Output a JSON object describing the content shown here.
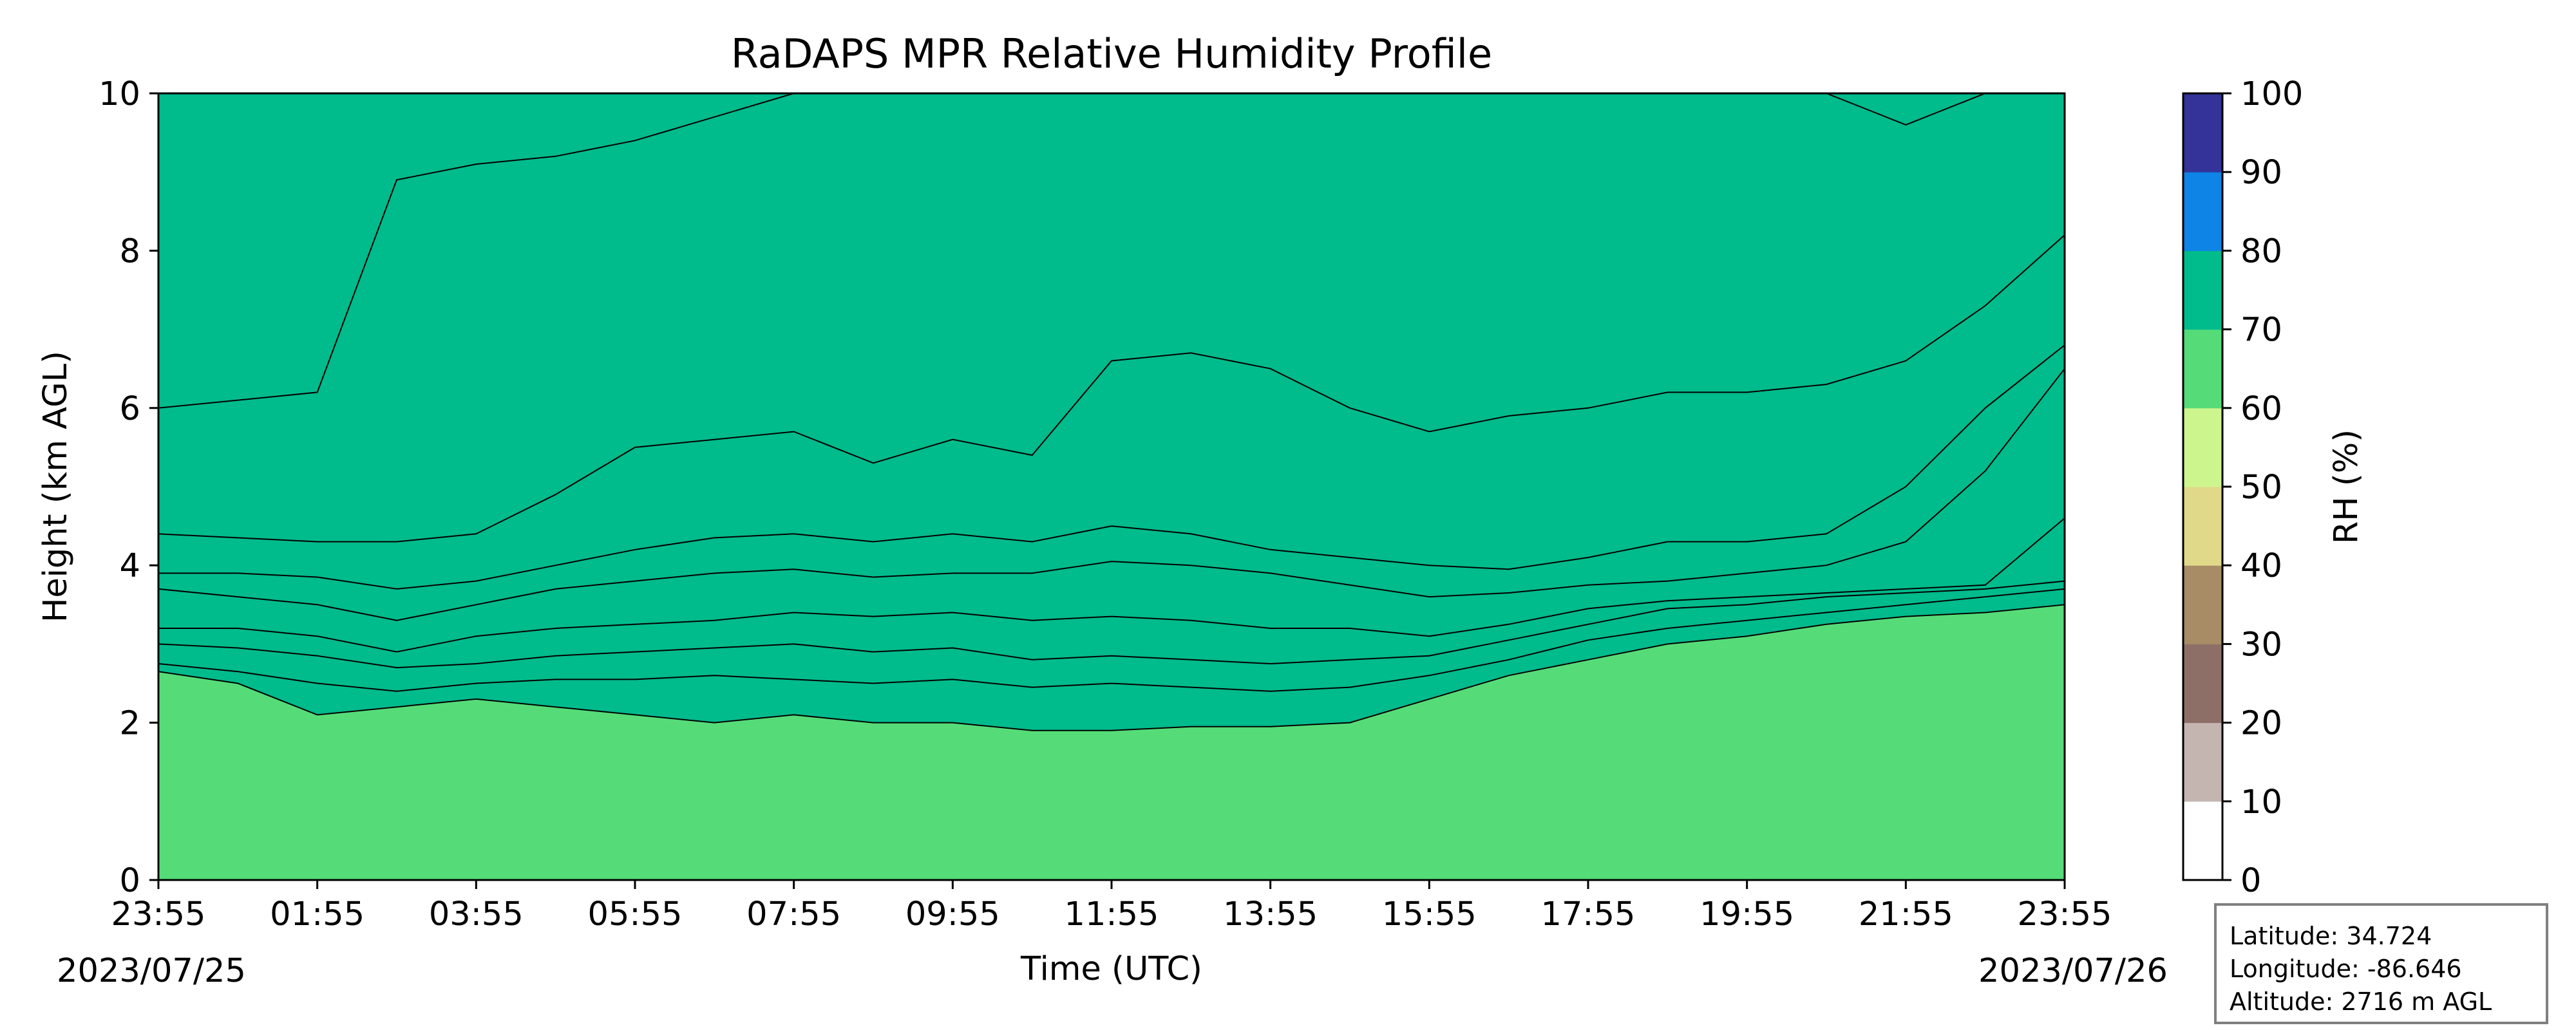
{
  "chart_data": {
    "type": "heatmap",
    "title": "RaDAPS MPR Relative Humidity Profile",
    "xlabel": "Time (UTC)",
    "ylabel": "Height (km AGL)",
    "x_ticks": [
      "23:55",
      "01:55",
      "03:55",
      "05:55",
      "07:55",
      "09:55",
      "11:55",
      "13:55",
      "15:55",
      "17:55",
      "19:55",
      "21:55",
      "23:55"
    ],
    "x_start_hours": 0,
    "x_end_hours": 24,
    "start_date": "2023/07/25",
    "end_date": "2023/07/26",
    "ylim": [
      0,
      10
    ],
    "y_ticks": [
      "0",
      "2",
      "4",
      "6",
      "8",
      "10"
    ],
    "colorbar": {
      "label": "RH (%)",
      "levels": [
        0,
        10,
        20,
        30,
        40,
        50,
        60,
        70,
        80,
        90,
        100
      ],
      "tick_labels": [
        "0",
        "10",
        "20",
        "30",
        "40",
        "50",
        "60",
        "70",
        "80",
        "90",
        "100"
      ],
      "colors": [
        "#ffffff",
        "#c5b5b1",
        "#8e6f68",
        "#a88c65",
        "#e1d98a",
        "#cdf58d",
        "#55dc78",
        "#00bb8c",
        "#0d84e6",
        "#333399"
      ]
    },
    "grid": false,
    "contour_boundaries_km": {
      "time_hours": [
        0,
        1,
        2,
        3,
        4,
        5,
        6,
        7,
        8,
        9,
        10,
        11,
        12,
        13,
        14,
        15,
        16,
        17,
        18,
        19,
        20,
        21,
        22,
        23,
        24
      ],
      "rh_10": [
        6.0,
        6.1,
        6.2,
        8.9,
        9.1,
        9.2,
        9.4,
        9.7,
        10,
        10,
        10,
        10,
        10,
        10,
        10,
        10,
        10,
        10,
        10,
        10,
        10,
        10,
        9.6,
        10,
        10
      ],
      "rh_20": [
        4.4,
        4.35,
        4.3,
        4.3,
        4.4,
        4.9,
        5.5,
        5.6,
        5.7,
        5.3,
        5.6,
        5.4,
        6.6,
        6.7,
        6.5,
        6.0,
        5.7,
        5.9,
        6.0,
        6.2,
        6.2,
        6.3,
        6.6,
        7.3,
        8.2
      ],
      "rh_30": [
        3.9,
        3.9,
        3.85,
        3.7,
        3.8,
        4.0,
        4.2,
        4.35,
        4.4,
        4.3,
        4.4,
        4.3,
        4.5,
        4.4,
        4.2,
        4.1,
        4.0,
        3.95,
        4.1,
        4.3,
        4.3,
        4.4,
        5.0,
        6.0,
        6.8
      ],
      "rh_40": [
        3.7,
        3.6,
        3.5,
        3.3,
        3.5,
        3.7,
        3.8,
        3.9,
        3.95,
        3.85,
        3.9,
        3.9,
        4.05,
        4.0,
        3.9,
        3.75,
        3.6,
        3.65,
        3.75,
        3.8,
        3.9,
        4.0,
        4.3,
        5.2,
        6.5
      ],
      "rh_50": [
        3.2,
        3.2,
        3.1,
        2.9,
        3.1,
        3.2,
        3.25,
        3.3,
        3.4,
        3.35,
        3.4,
        3.3,
        3.35,
        3.3,
        3.2,
        3.2,
        3.1,
        3.25,
        3.45,
        3.55,
        3.6,
        3.65,
        3.7,
        3.75,
        4.6
      ],
      "rh_60": [
        3.0,
        2.95,
        2.85,
        2.7,
        2.75,
        2.85,
        2.9,
        2.95,
        3.0,
        2.9,
        2.95,
        2.8,
        2.85,
        2.8,
        2.75,
        2.8,
        2.85,
        3.05,
        3.25,
        3.45,
        3.5,
        3.6,
        3.65,
        3.7,
        3.8
      ],
      "rh_70": [
        2.75,
        2.65,
        2.5,
        2.4,
        2.5,
        2.55,
        2.55,
        2.6,
        2.55,
        2.5,
        2.55,
        2.45,
        2.5,
        2.45,
        2.4,
        2.45,
        2.6,
        2.8,
        3.05,
        3.2,
        3.3,
        3.4,
        3.5,
        3.6,
        3.7
      ],
      "rh_80": [
        2.65,
        2.5,
        2.1,
        2.2,
        2.3,
        2.2,
        2.1,
        2.0,
        2.1,
        2.0,
        2.0,
        1.9,
        1.9,
        1.95,
        1.95,
        2.0,
        2.3,
        2.6,
        2.8,
        3.0,
        3.1,
        3.25,
        3.35,
        3.4,
        3.5
      ]
    }
  },
  "info_box": {
    "latitude": "Latitude: 34.724",
    "longitude": "Longitude: -86.646",
    "altitude": "Altitude: 2716 m AGL"
  }
}
